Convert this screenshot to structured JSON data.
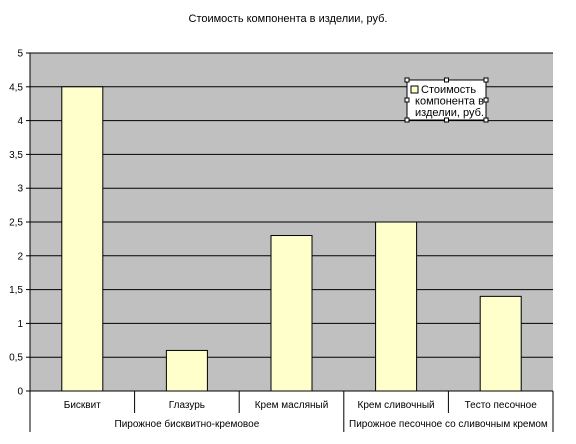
{
  "chart_data": {
    "type": "bar",
    "title": "Стоимость компонента в изделии, руб.",
    "xlabel": "",
    "ylabel": "",
    "ylim": [
      0,
      5
    ],
    "yticks": [
      "0",
      "0,5",
      "1",
      "1,5",
      "2",
      "2,5",
      "3",
      "3,5",
      "4",
      "4,5",
      "5"
    ],
    "grid": true,
    "categories": [
      "Бисквит",
      "Глазурь",
      "Крем масляный",
      "Крем сливочный",
      "Тесто песочное"
    ],
    "groups": [
      {
        "label": "Пирожное бисквитно-кремовое",
        "span": 3
      },
      {
        "label": "Пирожное песочное со сливочным кремом",
        "span": 2
      }
    ],
    "series": [
      {
        "name": "Стоимость компонента в изделии, руб.",
        "values": [
          4.5,
          0.6,
          2.3,
          2.5,
          1.4
        ]
      }
    ],
    "legend": {
      "position": "top-right",
      "lines": [
        "Стоимость",
        "компонента в",
        "изделии, руб."
      ]
    },
    "colors": {
      "plot_bg": "#c0c0c0",
      "bar_fill": "#ffffcc",
      "bar_stroke": "#000000",
      "grid": "#000000"
    }
  }
}
